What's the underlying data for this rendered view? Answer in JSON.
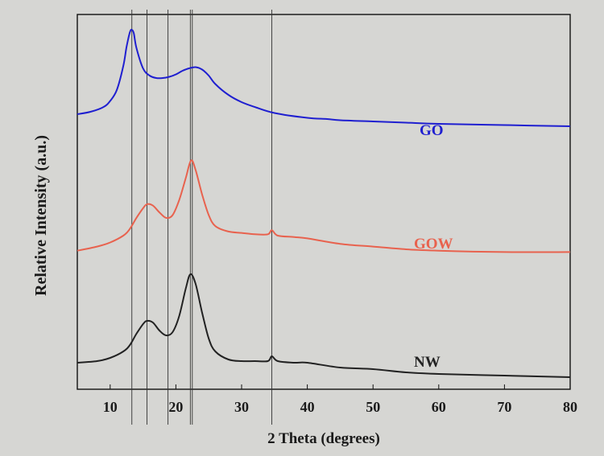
{
  "chart_data": {
    "type": "line",
    "xlabel": "2 Theta (degrees)",
    "ylabel": "Relative Intensity (a.u.)",
    "xlim": [
      5,
      80
    ],
    "xticks": [
      10,
      20,
      30,
      40,
      50,
      60,
      70,
      80
    ],
    "y_units": "relative (a.u.)",
    "grid": false,
    "legend": "labels next to curves",
    "reference_lines": [
      13.3,
      15.6,
      18.8,
      22.2,
      22.5,
      34.6
    ],
    "series": [
      {
        "name": "GO",
        "color": "#1f1fd0",
        "x": [
          5,
          7,
          9,
          10,
          11,
          12,
          12.5,
          13,
          13.3,
          13.6,
          14,
          15,
          16,
          17,
          18,
          19,
          20,
          21,
          22,
          23,
          24,
          25,
          26,
          28,
          30,
          32,
          35,
          40,
          43,
          45,
          50,
          55,
          60,
          70,
          80
        ],
        "y": [
          0.3,
          0.32,
          0.36,
          0.41,
          0.5,
          0.7,
          0.86,
          0.98,
          1.0,
          0.97,
          0.85,
          0.68,
          0.62,
          0.6,
          0.6,
          0.61,
          0.63,
          0.66,
          0.68,
          0.69,
          0.67,
          0.62,
          0.55,
          0.46,
          0.4,
          0.36,
          0.31,
          0.27,
          0.26,
          0.25,
          0.24,
          0.23,
          0.22,
          0.21,
          0.2
        ]
      },
      {
        "name": "GOW",
        "color": "#e8624e",
        "x": [
          5,
          8,
          10,
          12,
          13,
          14,
          15,
          15.6,
          16.5,
          17.5,
          18.5,
          19.5,
          20.5,
          21.5,
          22.3,
          23,
          24,
          25,
          26,
          28,
          30,
          32,
          34,
          34.6,
          35.5,
          38,
          40,
          45,
          50,
          55,
          60,
          70,
          80
        ],
        "y": [
          0.09,
          0.12,
          0.15,
          0.2,
          0.25,
          0.33,
          0.4,
          0.43,
          0.42,
          0.37,
          0.33,
          0.35,
          0.46,
          0.62,
          0.75,
          0.68,
          0.5,
          0.35,
          0.27,
          0.23,
          0.22,
          0.21,
          0.21,
          0.24,
          0.2,
          0.19,
          0.18,
          0.14,
          0.12,
          0.1,
          0.09,
          0.08,
          0.08
        ]
      },
      {
        "name": "NW",
        "color": "#222222",
        "x": [
          5,
          8,
          10,
          12,
          13,
          14,
          15,
          15.6,
          16.5,
          17.5,
          18.5,
          19.5,
          20.5,
          21.5,
          22.2,
          23,
          24,
          25,
          26,
          28,
          30,
          32,
          34,
          34.6,
          35.5,
          38,
          40,
          45,
          50,
          55,
          60,
          70,
          80
        ],
        "y": [
          0.09,
          0.1,
          0.12,
          0.16,
          0.2,
          0.27,
          0.33,
          0.35,
          0.34,
          0.29,
          0.26,
          0.28,
          0.38,
          0.55,
          0.64,
          0.58,
          0.4,
          0.24,
          0.16,
          0.11,
          0.1,
          0.1,
          0.1,
          0.13,
          0.1,
          0.09,
          0.09,
          0.06,
          0.05,
          0.03,
          0.02,
          0.01,
          0.0
        ]
      }
    ]
  }
}
